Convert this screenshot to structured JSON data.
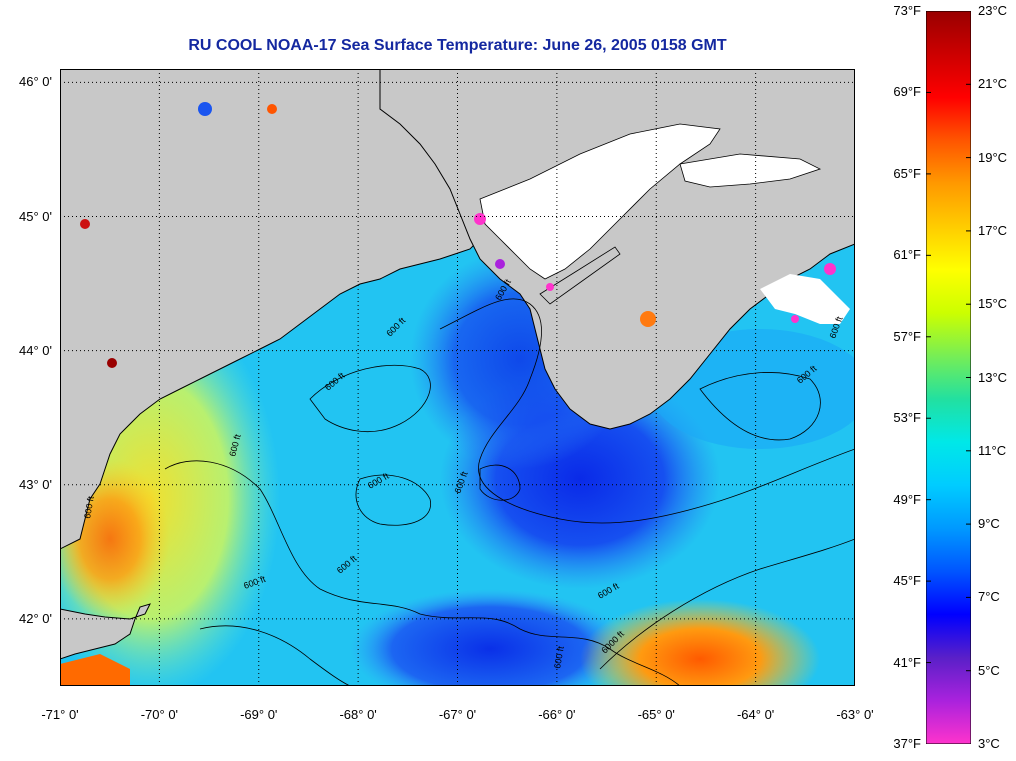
{
  "title": "RU COOL  NOAA-17  Sea Surface Temperature:  June 26, 2005 0158 GMT",
  "lat_labels": [
    {
      "text": "46° 0'",
      "value": 46
    },
    {
      "text": "45° 0'",
      "value": 45
    },
    {
      "text": "44° 0'",
      "value": 44
    },
    {
      "text": "43° 0'",
      "value": 43
    },
    {
      "text": "42° 0'",
      "value": 42
    }
  ],
  "lon_labels": [
    {
      "text": "-71° 0'",
      "value": -71
    },
    {
      "text": "-70° 0'",
      "value": -70
    },
    {
      "text": "-69° 0'",
      "value": -69
    },
    {
      "text": "-68° 0'",
      "value": -68
    },
    {
      "text": "-67° 0'",
      "value": -67
    },
    {
      "text": "-66° 0'",
      "value": -66
    },
    {
      "text": "-65° 0'",
      "value": -65
    },
    {
      "text": "-64° 0'",
      "value": -64
    },
    {
      "text": "-63° 0'",
      "value": -63
    }
  ],
  "lat_range": [
    41.5,
    46.1
  ],
  "lon_range": [
    -71,
    -63
  ],
  "contour_label": "600 ft",
  "contour_label_deep": "6000 ft",
  "colorbar": {
    "fahrenheit": [
      "73°F",
      "69°F",
      "65°F",
      "61°F",
      "57°F",
      "53°F",
      "49°F",
      "45°F",
      "41°F",
      "37°F"
    ],
    "celsius": [
      "23°C",
      "21°C",
      "19°C",
      "17°C",
      "15°C",
      "13°C",
      "11°C",
      "9°C",
      "7°C",
      "5°C",
      "3°C"
    ],
    "celsius_range": [
      3,
      23
    ],
    "colors": [
      "#ff33cc",
      "#aa22dd",
      "#5a20c8",
      "#0000ff",
      "#0055ff",
      "#0099ff",
      "#00ccff",
      "#00e8e8",
      "#22e0a0",
      "#77ee55",
      "#ccff00",
      "#ffff00",
      "#ffcc00",
      "#ff9900",
      "#ff5500",
      "#ff0000",
      "#cc0000",
      "#990000"
    ]
  },
  "colors": {
    "land": "#c8c8c8",
    "ice_or_cloud": "#ffffff",
    "title": "#1428a0"
  }
}
